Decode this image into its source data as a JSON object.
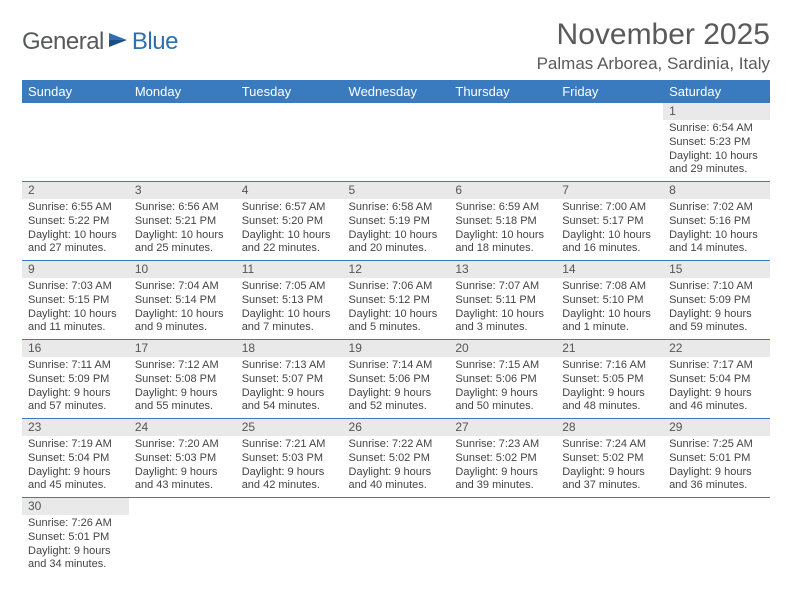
{
  "logo": {
    "text1": "General",
    "text2": "Blue"
  },
  "title": "November 2025",
  "location": "Palmas Arborea, Sardinia, Italy",
  "colors": {
    "header_bg": "#3a7bbf",
    "header_fg": "#ffffff",
    "daynum_bg": "#e9e9e9",
    "border": "#3a7bbf",
    "text": "#444444",
    "title": "#5a5a5a"
  },
  "weekdays": [
    "Sunday",
    "Monday",
    "Tuesday",
    "Wednesday",
    "Thursday",
    "Friday",
    "Saturday"
  ],
  "weeks": [
    [
      null,
      null,
      null,
      null,
      null,
      null,
      {
        "n": "1",
        "sr": "Sunrise: 6:54 AM",
        "ss": "Sunset: 5:23 PM",
        "dl": "Daylight: 10 hours and 29 minutes."
      }
    ],
    [
      {
        "n": "2",
        "sr": "Sunrise: 6:55 AM",
        "ss": "Sunset: 5:22 PM",
        "dl": "Daylight: 10 hours and 27 minutes."
      },
      {
        "n": "3",
        "sr": "Sunrise: 6:56 AM",
        "ss": "Sunset: 5:21 PM",
        "dl": "Daylight: 10 hours and 25 minutes."
      },
      {
        "n": "4",
        "sr": "Sunrise: 6:57 AM",
        "ss": "Sunset: 5:20 PM",
        "dl": "Daylight: 10 hours and 22 minutes."
      },
      {
        "n": "5",
        "sr": "Sunrise: 6:58 AM",
        "ss": "Sunset: 5:19 PM",
        "dl": "Daylight: 10 hours and 20 minutes."
      },
      {
        "n": "6",
        "sr": "Sunrise: 6:59 AM",
        "ss": "Sunset: 5:18 PM",
        "dl": "Daylight: 10 hours and 18 minutes."
      },
      {
        "n": "7",
        "sr": "Sunrise: 7:00 AM",
        "ss": "Sunset: 5:17 PM",
        "dl": "Daylight: 10 hours and 16 minutes."
      },
      {
        "n": "8",
        "sr": "Sunrise: 7:02 AM",
        "ss": "Sunset: 5:16 PM",
        "dl": "Daylight: 10 hours and 14 minutes."
      }
    ],
    [
      {
        "n": "9",
        "sr": "Sunrise: 7:03 AM",
        "ss": "Sunset: 5:15 PM",
        "dl": "Daylight: 10 hours and 11 minutes."
      },
      {
        "n": "10",
        "sr": "Sunrise: 7:04 AM",
        "ss": "Sunset: 5:14 PM",
        "dl": "Daylight: 10 hours and 9 minutes."
      },
      {
        "n": "11",
        "sr": "Sunrise: 7:05 AM",
        "ss": "Sunset: 5:13 PM",
        "dl": "Daylight: 10 hours and 7 minutes."
      },
      {
        "n": "12",
        "sr": "Sunrise: 7:06 AM",
        "ss": "Sunset: 5:12 PM",
        "dl": "Daylight: 10 hours and 5 minutes."
      },
      {
        "n": "13",
        "sr": "Sunrise: 7:07 AM",
        "ss": "Sunset: 5:11 PM",
        "dl": "Daylight: 10 hours and 3 minutes."
      },
      {
        "n": "14",
        "sr": "Sunrise: 7:08 AM",
        "ss": "Sunset: 5:10 PM",
        "dl": "Daylight: 10 hours and 1 minute."
      },
      {
        "n": "15",
        "sr": "Sunrise: 7:10 AM",
        "ss": "Sunset: 5:09 PM",
        "dl": "Daylight: 9 hours and 59 minutes."
      }
    ],
    [
      {
        "n": "16",
        "sr": "Sunrise: 7:11 AM",
        "ss": "Sunset: 5:09 PM",
        "dl": "Daylight: 9 hours and 57 minutes."
      },
      {
        "n": "17",
        "sr": "Sunrise: 7:12 AM",
        "ss": "Sunset: 5:08 PM",
        "dl": "Daylight: 9 hours and 55 minutes."
      },
      {
        "n": "18",
        "sr": "Sunrise: 7:13 AM",
        "ss": "Sunset: 5:07 PM",
        "dl": "Daylight: 9 hours and 54 minutes."
      },
      {
        "n": "19",
        "sr": "Sunrise: 7:14 AM",
        "ss": "Sunset: 5:06 PM",
        "dl": "Daylight: 9 hours and 52 minutes."
      },
      {
        "n": "20",
        "sr": "Sunrise: 7:15 AM",
        "ss": "Sunset: 5:06 PM",
        "dl": "Daylight: 9 hours and 50 minutes."
      },
      {
        "n": "21",
        "sr": "Sunrise: 7:16 AM",
        "ss": "Sunset: 5:05 PM",
        "dl": "Daylight: 9 hours and 48 minutes."
      },
      {
        "n": "22",
        "sr": "Sunrise: 7:17 AM",
        "ss": "Sunset: 5:04 PM",
        "dl": "Daylight: 9 hours and 46 minutes."
      }
    ],
    [
      {
        "n": "23",
        "sr": "Sunrise: 7:19 AM",
        "ss": "Sunset: 5:04 PM",
        "dl": "Daylight: 9 hours and 45 minutes."
      },
      {
        "n": "24",
        "sr": "Sunrise: 7:20 AM",
        "ss": "Sunset: 5:03 PM",
        "dl": "Daylight: 9 hours and 43 minutes."
      },
      {
        "n": "25",
        "sr": "Sunrise: 7:21 AM",
        "ss": "Sunset: 5:03 PM",
        "dl": "Daylight: 9 hours and 42 minutes."
      },
      {
        "n": "26",
        "sr": "Sunrise: 7:22 AM",
        "ss": "Sunset: 5:02 PM",
        "dl": "Daylight: 9 hours and 40 minutes."
      },
      {
        "n": "27",
        "sr": "Sunrise: 7:23 AM",
        "ss": "Sunset: 5:02 PM",
        "dl": "Daylight: 9 hours and 39 minutes."
      },
      {
        "n": "28",
        "sr": "Sunrise: 7:24 AM",
        "ss": "Sunset: 5:02 PM",
        "dl": "Daylight: 9 hours and 37 minutes."
      },
      {
        "n": "29",
        "sr": "Sunrise: 7:25 AM",
        "ss": "Sunset: 5:01 PM",
        "dl": "Daylight: 9 hours and 36 minutes."
      }
    ],
    [
      {
        "n": "30",
        "sr": "Sunrise: 7:26 AM",
        "ss": "Sunset: 5:01 PM",
        "dl": "Daylight: 9 hours and 34 minutes."
      },
      null,
      null,
      null,
      null,
      null,
      null
    ]
  ]
}
